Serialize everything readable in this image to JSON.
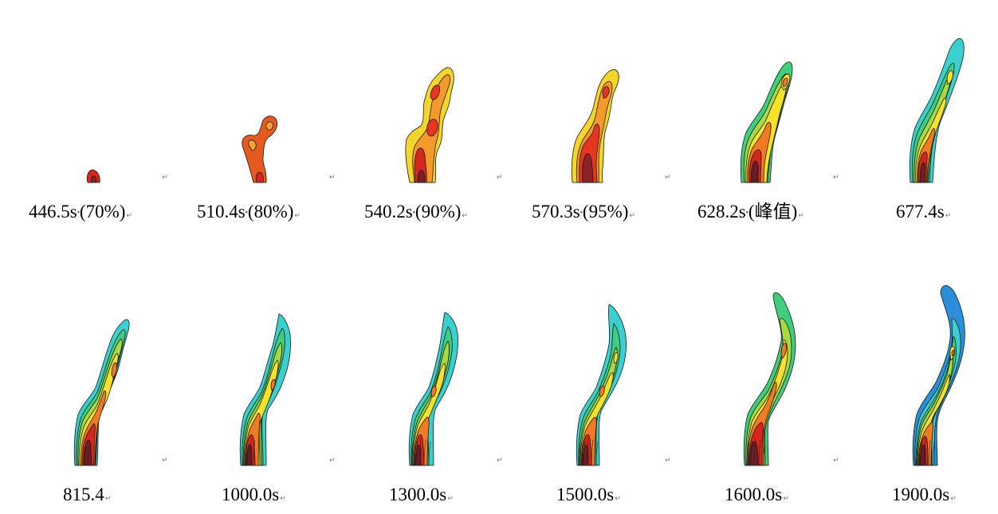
{
  "colors": {
    "dark_red": "#6e1f24",
    "red": "#d7261e",
    "orange": "#f07b22",
    "yellow": "#f6e329",
    "yellow_green": "#a8d845",
    "green": "#3fcf7c",
    "cyan": "#3ad0cf",
    "blue": "#2a8fd8",
    "contour_line": "#1a1a1a"
  },
  "paragraph_mark": "↵",
  "rows": [
    {
      "panels": [
        {
          "time": "446.5s",
          "note": "(70%)"
        },
        {
          "time": "510.4s",
          "note": "(80%)"
        },
        {
          "time": "540.2s",
          "note": "(90%)"
        },
        {
          "time": "570.3s",
          "note": "(95%)"
        },
        {
          "time": "628.2s",
          "note": "(峰值)"
        },
        {
          "time": "677.4s",
          "note": ""
        }
      ]
    },
    {
      "panels": [
        {
          "time": "815.4",
          "note": ""
        },
        {
          "time": "1000.0s",
          "note": ""
        },
        {
          "time": "1300.0s",
          "note": ""
        },
        {
          "time": "1500.0s",
          "note": ""
        },
        {
          "time": "1600.0s",
          "note": ""
        },
        {
          "time": "1900.0s",
          "note": ""
        }
      ]
    }
  ]
}
